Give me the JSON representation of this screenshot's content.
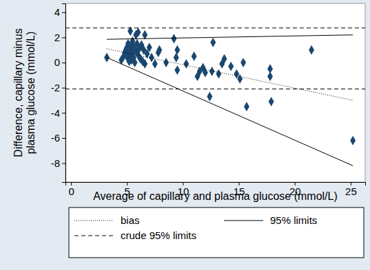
{
  "chart_data": {
    "type": "scatter",
    "x_label": "Average of capillary and plasma glucose (mmol/L)",
    "y_label": [
      "Difference, capillary minus",
      "plasma glucose (mmol/L)"
    ],
    "xlim": [
      -0.5,
      26.3
    ],
    "ylim": [
      -9.5,
      4.7
    ],
    "xticks": [
      0,
      5,
      10,
      15,
      20,
      25
    ],
    "yticks": [
      -8,
      -6,
      -4,
      -2,
      0,
      2,
      4
    ],
    "grid": false,
    "legend": "bottom",
    "series": [
      {
        "type": "scatter",
        "marker": "diamond",
        "color": "#1a476f",
        "x": [
          3.2,
          4.5,
          4.7,
          4.8,
          4.9,
          5.0,
          5.0,
          5.0,
          5.1,
          5.1,
          5.2,
          5.2,
          5.3,
          5.3,
          5.3,
          5.4,
          5.4,
          5.5,
          5.5,
          5.6,
          5.6,
          5.7,
          5.8,
          5.8,
          5.9,
          6.0,
          6.0,
          6.1,
          6.2,
          6.3,
          6.4,
          6.5,
          6.6,
          6.6,
          6.8,
          7.0,
          7.2,
          7.5,
          7.8,
          7.9,
          8.5,
          9.2,
          9.4,
          9.5,
          9.5,
          10.3,
          11.0,
          11.3,
          11.5,
          11.8,
          12.0,
          12.4,
          12.6,
          12.7,
          13.2,
          13.5,
          13.7,
          14.3,
          14.8,
          15.1,
          15.4,
          15.7,
          17.8,
          17.8,
          17.9,
          21.5,
          25.2
        ],
        "values": [
          0.4,
          0.2,
          0.5,
          0.8,
          1.0,
          1.2,
          0.5,
          0.9,
          0.3,
          1.5,
          0.9,
          0.1,
          2.5,
          0.6,
          1.3,
          1.1,
          0.2,
          1.7,
          0.8,
          0.4,
          1.3,
          0.0,
          2.2,
          0.9,
          1.5,
          2.4,
          0.6,
          1.1,
          0.3,
          1.4,
          0.1,
          1.0,
          2.2,
          -0.1,
          0.7,
          1.2,
          0.4,
          -0.1,
          0.8,
          1.0,
          0.0,
          1.9,
          0.4,
          1.0,
          -0.6,
          -0.1,
          0.5,
          -1.1,
          -0.7,
          -0.4,
          -0.8,
          -2.7,
          -0.7,
          1.6,
          -0.9,
          -0.1,
          0.3,
          -0.3,
          -0.9,
          -1.3,
          0.0,
          -3.5,
          -0.5,
          -1.1,
          -3.1,
          1.0,
          -6.2
        ]
      },
      {
        "name": "bias",
        "type": "line",
        "line_style": "dotted",
        "color": "#000000",
        "x": [
          3.2,
          25.2
        ],
        "values": [
          1.1,
          -3.0
        ]
      },
      {
        "name": "95% limits",
        "type": "line",
        "line_style": "solid",
        "color": "#000000",
        "x": [
          3.2,
          25.2,
          null,
          3.2,
          25.2
        ],
        "values": [
          1.85,
          2.2,
          null,
          0.4,
          -8.2
        ]
      },
      {
        "name": "crude 95% limits",
        "type": "line",
        "line_style": "dashed",
        "color": "#000000",
        "x": [
          -0.5,
          26.3,
          null,
          -0.5,
          26.3
        ],
        "values": [
          2.75,
          2.75,
          null,
          -2.1,
          -2.1
        ]
      }
    ]
  }
}
